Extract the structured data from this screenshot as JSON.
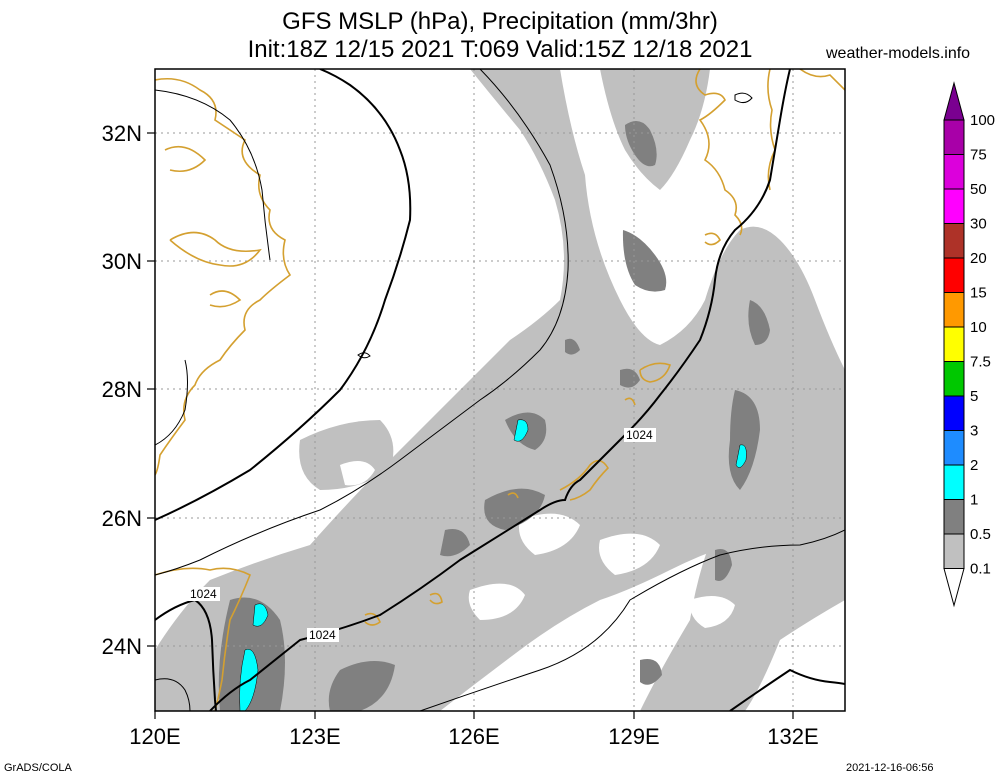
{
  "title_line1": "GFS MSLP (hPa), Precipitation (mm/3hr)",
  "title_line2": "Init:18Z 12/15 2021 T:069 Valid:15Z 12/18 2021",
  "site": "weather-models.info",
  "footer_left": "GrADS/COLA",
  "footer_right": "2021-12-16-06:56",
  "lat_labels": [
    "32N",
    "30N",
    "28N",
    "26N",
    "24N"
  ],
  "lon_labels": [
    "120E",
    "123E",
    "126E",
    "129E",
    "132E"
  ],
  "isobar_labels": [
    "1024",
    "1024",
    "1024"
  ],
  "colorbar": {
    "levels": [
      "100",
      "75",
      "50",
      "30",
      "20",
      "15",
      "10",
      "7.5",
      "5",
      "3",
      "2",
      "1",
      "0.5",
      "0.1"
    ],
    "colors": [
      "#7a0090",
      "#a800a8",
      "#dc00dc",
      "#ff00ff",
      "#ae3228",
      "#ff0000",
      "#ff9900",
      "#ffff00",
      "#00c800",
      "#0000ff",
      "#1e8cff",
      "#00ffff",
      "#808080",
      "#c0c0c0",
      "#ffffff"
    ]
  }
}
